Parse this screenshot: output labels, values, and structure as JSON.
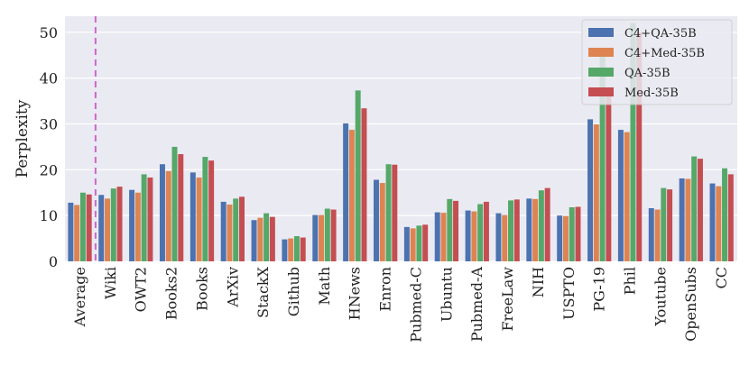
{
  "chart_data": {
    "type": "bar",
    "title": "",
    "xlabel": "",
    "ylabel": "Perplexity",
    "ylim": [
      0,
      53.5
    ],
    "yticks": [
      0,
      10,
      20,
      30,
      40,
      50
    ],
    "grid": true,
    "legend_position": "top-right",
    "reference_line": {
      "after_category": "Average",
      "color": "#cc66cc",
      "style": "dashed"
    },
    "categories": [
      "Average",
      "Wiki",
      "OWT2",
      "Books2",
      "Books",
      "ArXiv",
      "StackX",
      "Github",
      "Math",
      "HNews",
      "Enron",
      "Pubmed-C",
      "Ubuntu",
      "Pubmed-A",
      "FreeLaw",
      "NIH",
      "USPTO",
      "PG-19",
      "Phil",
      "Youtube",
      "OpenSubs",
      "CC"
    ],
    "series": [
      {
        "name": "C4+QA-35B",
        "color": "#4c72b0",
        "values": [
          12.8,
          14.5,
          15.6,
          21.2,
          19.4,
          13.0,
          9.0,
          4.8,
          10.1,
          30.1,
          17.8,
          7.5,
          10.7,
          11.1,
          10.5,
          13.7,
          10.0,
          31.0,
          28.7,
          11.6,
          18.1,
          17.0
        ]
      },
      {
        "name": "C4+Med-35B",
        "color": "#dd8452",
        "values": [
          12.3,
          13.7,
          15.0,
          19.7,
          18.3,
          12.4,
          9.5,
          5.0,
          10.1,
          28.7,
          17.1,
          7.2,
          10.6,
          10.9,
          10.1,
          13.6,
          9.9,
          29.9,
          28.2,
          11.3,
          18.0,
          16.4
        ]
      },
      {
        "name": "QA-35B",
        "color": "#55a868",
        "values": [
          15.0,
          15.9,
          19.0,
          25.0,
          22.8,
          13.7,
          10.5,
          5.5,
          11.5,
          37.3,
          21.2,
          7.8,
          13.6,
          12.5,
          13.3,
          15.5,
          11.8,
          45.0,
          52.0,
          16.0,
          22.9,
          20.3
        ]
      },
      {
        "name": "Med-35B",
        "color": "#c44e52",
        "values": [
          14.6,
          16.3,
          18.3,
          23.4,
          22.0,
          14.1,
          9.7,
          5.2,
          11.3,
          33.4,
          21.1,
          8.0,
          13.2,
          13.0,
          13.5,
          16.0,
          11.9,
          36.0,
          50.0,
          15.7,
          22.4,
          19.0
        ]
      }
    ]
  }
}
